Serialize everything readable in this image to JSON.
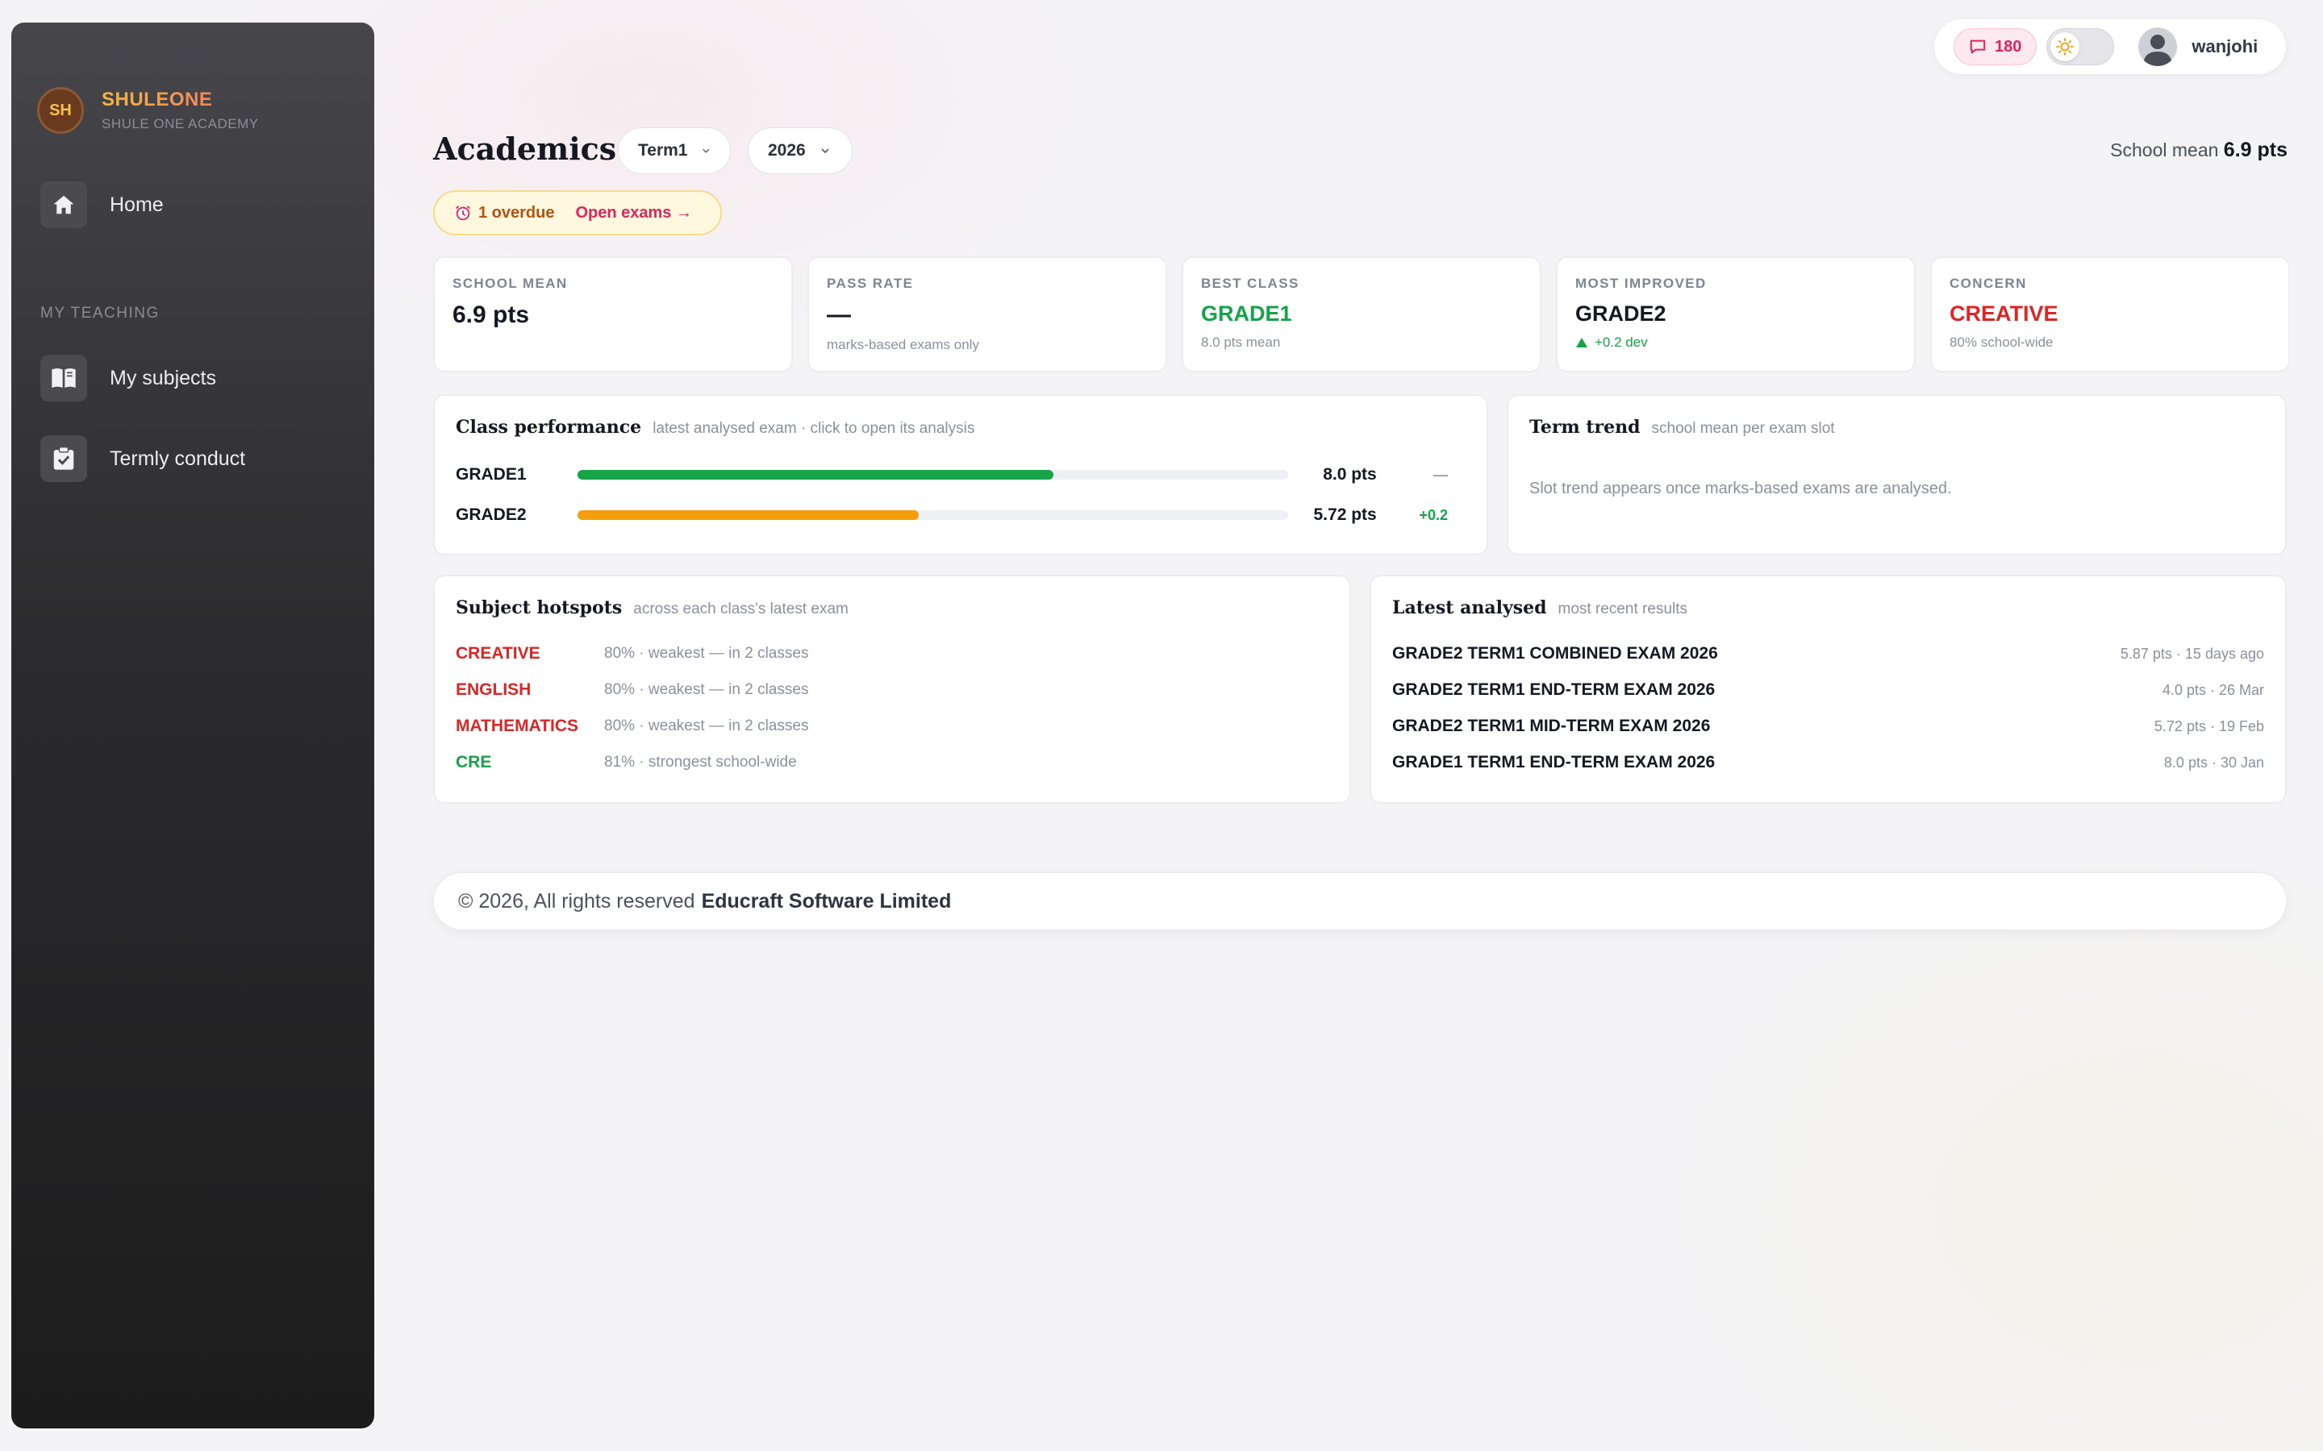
{
  "brand": {
    "initials": "SH",
    "name": "SHULEONE",
    "subtitle": "SHULE ONE ACADEMY"
  },
  "sidebar": {
    "home": {
      "label": "Home",
      "icon": "home-icon"
    },
    "section_label": "MY TEACHING",
    "items": [
      {
        "label": "My subjects",
        "icon": "book-icon"
      },
      {
        "label": "Termly conduct",
        "icon": "clipboard-check-icon"
      }
    ]
  },
  "topbar": {
    "message_count": "180",
    "user_name": "wanjohi"
  },
  "header": {
    "title": "Academics",
    "term_select": "Term1",
    "year_select": "2026",
    "school_mean_label": "School mean",
    "school_mean_value": "6.9 pts"
  },
  "alert": {
    "icon": "alarm-clock-icon",
    "overdue": "1 overdue",
    "link": "Open exams →"
  },
  "stats": [
    {
      "label": "SCHOOL MEAN",
      "value": "6.9 pts",
      "sub": ""
    },
    {
      "label": "PASS RATE",
      "value": "—",
      "sub": "marks-based exams only"
    },
    {
      "label": "BEST CLASS",
      "value": "GRADE1",
      "sub": "8.0 pts mean"
    },
    {
      "label": "MOST IMPROVED",
      "value": "GRADE2",
      "sub": "+0.2 dev"
    },
    {
      "label": "CONCERN",
      "value": "CREATIVE",
      "sub": "80% school-wide"
    }
  ],
  "class_performance": {
    "title": "Class performance",
    "subtitle": "latest analysed exam · click to open its analysis",
    "rows": [
      {
        "name": "GRADE1",
        "pts": "8.0 pts",
        "fill": 0.67,
        "dev": "—",
        "color": "#17a34a"
      },
      {
        "name": "GRADE2",
        "pts": "5.72 pts",
        "fill": 0.48,
        "dev": "+0.2",
        "color": "#f59e0b"
      }
    ]
  },
  "term_trend": {
    "title": "Term trend",
    "subtitle": "school mean per exam slot",
    "empty_text": "Slot trend appears once marks-based exams are analysed."
  },
  "subject_hotspots": {
    "title": "Subject hotspots",
    "subtitle": "across each class's latest exam",
    "rows": [
      {
        "name": "CREATIVE",
        "desc": "80% · weakest — in 2 classes",
        "color": "#dc2626"
      },
      {
        "name": "ENGLISH",
        "desc": "80% · weakest — in 2 classes",
        "color": "#dc2626"
      },
      {
        "name": "MATHEMATICS",
        "desc": "80% · weakest — in 2 classes",
        "color": "#dc2626"
      },
      {
        "name": "CRE",
        "desc": "81% · strongest school-wide",
        "color": "#17a34a"
      }
    ]
  },
  "latest_analysed": {
    "title": "Latest analysed",
    "subtitle": "most recent results",
    "rows": [
      {
        "name": "GRADE2 TERM1 COMBINED EXAM 2026",
        "meta": "5.87 pts · 15 days ago"
      },
      {
        "name": "GRADE2 TERM1 END-TERM EXAM 2026",
        "meta": "4.0 pts · 26 Mar"
      },
      {
        "name": "GRADE2 TERM1 MID-TERM EXAM 2026",
        "meta": "5.72 pts · 19 Feb"
      },
      {
        "name": "GRADE1 TERM1 END-TERM EXAM 2026",
        "meta": "8.0 pts · 30 Jan"
      }
    ]
  },
  "footer": {
    "text": "© 2026, All rights reserved",
    "company": "Educraft Software Limited"
  }
}
